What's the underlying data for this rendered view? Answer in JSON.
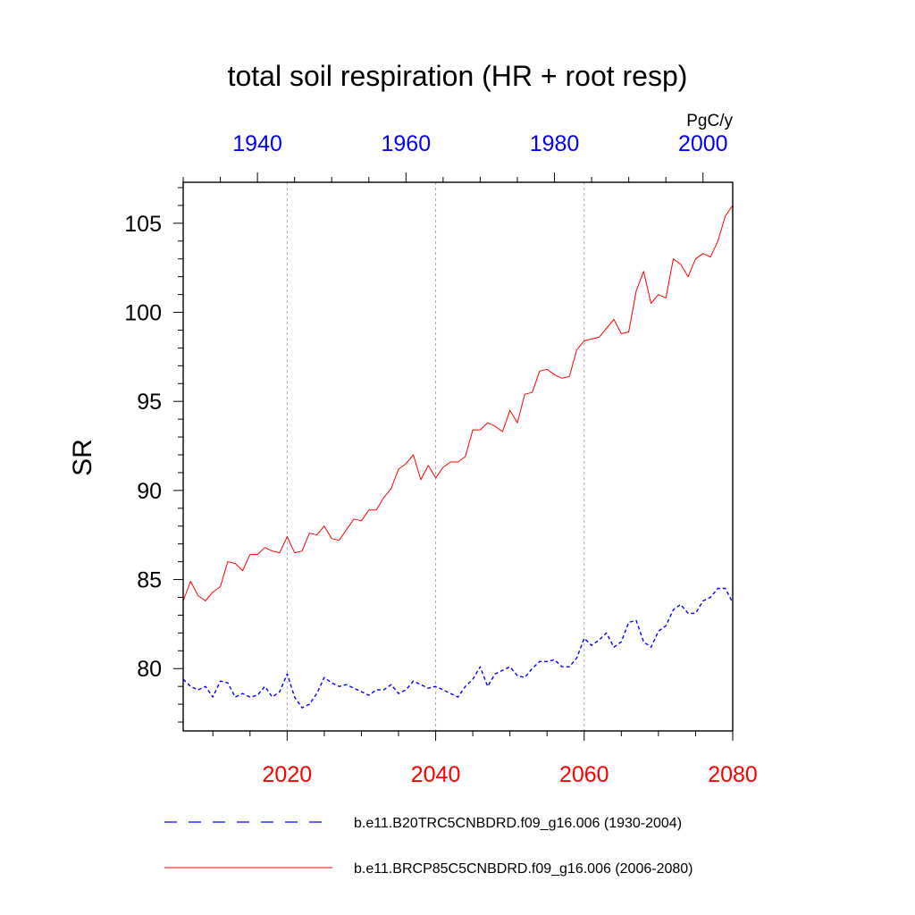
{
  "chart_data": {
    "type": "line",
    "title": "total soil respiration (HR + root resp)",
    "units": "PgC/y",
    "ylabel": "SR",
    "ylim": [
      76.5,
      107.3
    ],
    "yticks": [
      80,
      85,
      90,
      95,
      100,
      105
    ],
    "ytick_labels": [
      "80",
      "85",
      "90",
      "95",
      "100",
      "105"
    ],
    "x_bottom": {
      "range": [
        2006,
        2080
      ],
      "ticks": [
        2020,
        2040,
        2060,
        2080
      ],
      "labels": [
        "2020",
        "2040",
        "2060",
        "2080"
      ],
      "color": "#ff0000"
    },
    "x_top": {
      "range": [
        1930,
        2004
      ],
      "ticks": [
        1940,
        1960,
        1980,
        2000
      ],
      "labels": [
        "1940",
        "1960",
        "1980",
        "2000"
      ],
      "color": "#0000ff"
    },
    "gridlines_x": [
      2020,
      2040,
      2060
    ],
    "legend": {
      "placement": "bottom",
      "entries": [
        "b.e11.B20TRC5CNBDRD.f09_g16.006 (1930-2004)",
        "b.e11.BRCP85C5CNBDRD.f09_g16.006 (2006-2080)"
      ]
    },
    "series": [
      {
        "name": "b.e11.B20TRC5CNBDRD.f09_g16.006 (1930-2004)",
        "color": "#0000ff",
        "style": "dashed",
        "x": [
          2006,
          2007,
          2008,
          2009,
          2010,
          2011,
          2012,
          2013,
          2014,
          2015,
          2016,
          2017,
          2018,
          2019,
          2020,
          2021,
          2022,
          2023,
          2024,
          2025,
          2026,
          2027,
          2028,
          2029,
          2030,
          2031,
          2032,
          2033,
          2034,
          2035,
          2036,
          2037,
          2038,
          2039,
          2040,
          2041,
          2042,
          2043,
          2044,
          2045,
          2046,
          2047,
          2048,
          2049,
          2050,
          2051,
          2052,
          2053,
          2054,
          2055,
          2056,
          2057,
          2058,
          2059,
          2060,
          2061,
          2062,
          2063,
          2064,
          2065,
          2066,
          2067,
          2068,
          2069,
          2070,
          2071,
          2072,
          2073,
          2074,
          2075,
          2076,
          2077,
          2078,
          2079,
          2080
        ],
        "y": [
          79.4,
          79.0,
          78.8,
          79.0,
          78.4,
          79.3,
          79.2,
          78.4,
          78.6,
          78.4,
          78.5,
          79.0,
          78.4,
          78.7,
          79.7,
          78.4,
          77.8,
          78.0,
          78.6,
          79.5,
          79.2,
          79.0,
          79.1,
          78.9,
          78.7,
          78.5,
          78.8,
          78.8,
          79.1,
          78.6,
          78.8,
          79.3,
          79.1,
          78.9,
          79.0,
          78.8,
          78.6,
          78.4,
          79.0,
          79.4,
          80.1,
          79.0,
          79.7,
          79.9,
          80.1,
          79.6,
          79.5,
          80.0,
          80.4,
          80.4,
          80.5,
          80.1,
          80.1,
          80.6,
          81.7,
          81.3,
          81.6,
          82.0,
          81.2,
          81.5,
          82.6,
          82.7,
          81.5,
          81.2,
          82.1,
          82.4,
          83.3,
          83.6,
          83.1,
          83.1,
          83.8,
          84.0,
          84.5,
          84.5,
          83.7
        ]
      },
      {
        "name": "b.e11.BRCP85C5CNBDRD.f09_g16.006 (2006-2080)",
        "color": "#ff0000",
        "style": "solid",
        "x": [
          2006,
          2007,
          2008,
          2009,
          2010,
          2011,
          2012,
          2013,
          2014,
          2015,
          2016,
          2017,
          2018,
          2019,
          2020,
          2021,
          2022,
          2023,
          2024,
          2025,
          2026,
          2027,
          2028,
          2029,
          2030,
          2031,
          2032,
          2033,
          2034,
          2035,
          2036,
          2037,
          2038,
          2039,
          2040,
          2041,
          2042,
          2043,
          2044,
          2045,
          2046,
          2047,
          2048,
          2049,
          2050,
          2051,
          2052,
          2053,
          2054,
          2055,
          2056,
          2057,
          2058,
          2059,
          2060,
          2061,
          2062,
          2063,
          2064,
          2065,
          2066,
          2067,
          2068,
          2069,
          2070,
          2071,
          2072,
          2073,
          2074,
          2075,
          2076,
          2077,
          2078,
          2079,
          2080
        ],
        "y": [
          83.8,
          84.9,
          84.1,
          83.8,
          84.3,
          84.6,
          86.0,
          85.9,
          85.5,
          86.4,
          86.4,
          86.8,
          86.6,
          86.5,
          87.4,
          86.5,
          86.6,
          87.6,
          87.5,
          88.0,
          87.3,
          87.2,
          87.8,
          88.4,
          88.3,
          88.9,
          88.9,
          89.6,
          90.1,
          91.2,
          91.5,
          92.0,
          90.6,
          91.4,
          90.7,
          91.3,
          91.6,
          91.6,
          91.9,
          93.4,
          93.4,
          93.8,
          93.6,
          93.3,
          94.5,
          93.8,
          95.4,
          95.5,
          96.7,
          96.8,
          96.5,
          96.3,
          96.4,
          97.9,
          98.4,
          98.5,
          98.6,
          99.1,
          99.6,
          98.8,
          98.9,
          101.2,
          102.3,
          100.5,
          101.0,
          100.8,
          103.0,
          102.7,
          102.0,
          103.0,
          103.3,
          103.1,
          104.0,
          105.4,
          106.0
        ]
      }
    ]
  }
}
